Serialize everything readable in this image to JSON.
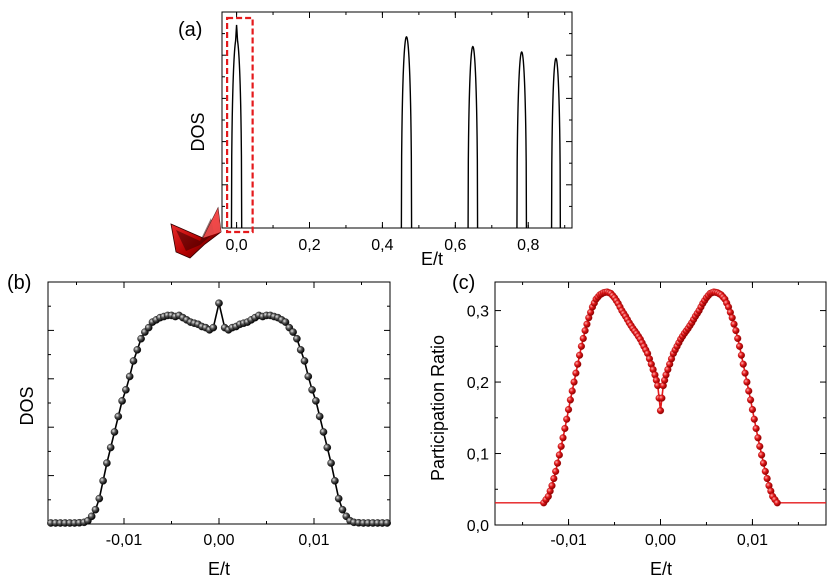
{
  "chart_data": [
    {
      "id": "a",
      "type": "line",
      "panel_label": "(a)",
      "xlabel": "E/t",
      "ylabel": "DOS",
      "xlim": [
        -0.04,
        0.92
      ],
      "ylim": [
        0,
        1.0
      ],
      "xticks": [
        0.0,
        0.2,
        0.4,
        0.6,
        0.8
      ],
      "xtick_labels": [
        "0,0",
        "0,2",
        "0,4",
        "0,6",
        "0,8"
      ],
      "yticks_labels_shown": false,
      "line_color": "#000000",
      "series": [
        {
          "name": "DOS",
          "peaks": [
            {
              "center": 0.0,
              "halfwidth": 0.014,
              "height": 0.88
            },
            {
              "center": 0.466,
              "halfwidth": 0.014,
              "height": 0.885
            },
            {
              "center": 0.648,
              "halfwidth": 0.013,
              "height": 0.84
            },
            {
              "center": 0.782,
              "halfwidth": 0.013,
              "height": 0.815
            },
            {
              "center": 0.876,
              "halfwidth": 0.012,
              "height": 0.785
            }
          ]
        }
      ],
      "highlight_box": {
        "x": [
          -0.026,
          0.044
        ],
        "color": "#e41a1c",
        "style": "dashed"
      },
      "annotation": "red-arrow-pointing-to-highlight"
    },
    {
      "id": "b",
      "type": "line",
      "panel_label": "(b)",
      "xlabel": "E/t",
      "ylabel": "DOS",
      "xlim": [
        -0.018,
        0.018
      ],
      "ylim": [
        0,
        1.0
      ],
      "xticks": [
        -0.01,
        0.0,
        0.01
      ],
      "xtick_labels": [
        "-0,01",
        "0,00",
        "0,01"
      ],
      "yticks_labels_shown": false,
      "marker": "sphere",
      "color": "#000000",
      "x": [
        -0.0177,
        -0.0172,
        -0.0167,
        -0.0162,
        -0.0157,
        -0.0152,
        -0.0147,
        -0.0142,
        -0.0138,
        -0.0134,
        -0.013,
        -0.0126,
        -0.0122,
        -0.0118,
        -0.0114,
        -0.011,
        -0.0106,
        -0.0102,
        -0.0098,
        -0.0094,
        -0.009,
        -0.0086,
        -0.0082,
        -0.0078,
        -0.0074,
        -0.007,
        -0.0066,
        -0.0062,
        -0.0058,
        -0.0054,
        -0.005,
        -0.0046,
        -0.0042,
        -0.0038,
        -0.0034,
        -0.003,
        -0.0026,
        -0.0022,
        -0.0018,
        -0.0014,
        -0.001,
        -0.0006,
        0.0,
        0.0006,
        0.001,
        0.0014,
        0.0018,
        0.0022,
        0.0026,
        0.003,
        0.0034,
        0.0038,
        0.0042,
        0.0046,
        0.005,
        0.0054,
        0.0058,
        0.0062,
        0.0066,
        0.007,
        0.0074,
        0.0078,
        0.0082,
        0.0086,
        0.009,
        0.0094,
        0.0098,
        0.0102,
        0.0106,
        0.011,
        0.0114,
        0.0118,
        0.0122,
        0.0126,
        0.013,
        0.0134,
        0.0138,
        0.0142,
        0.0147,
        0.0152,
        0.0157,
        0.0162,
        0.0167,
        0.0172,
        0.0177
      ],
      "y": [
        0.0,
        0.0,
        0.0,
        0.0,
        0.0,
        0.0,
        0.001,
        0.003,
        0.01,
        0.03,
        0.06,
        0.11,
        0.19,
        0.27,
        0.34,
        0.41,
        0.48,
        0.55,
        0.6,
        0.66,
        0.73,
        0.78,
        0.83,
        0.86,
        0.88,
        0.905,
        0.915,
        0.925,
        0.93,
        0.935,
        0.935,
        0.93,
        0.935,
        0.925,
        0.915,
        0.905,
        0.9,
        0.895,
        0.885,
        0.88,
        0.87,
        0.88,
        0.99,
        0.88,
        0.87,
        0.88,
        0.885,
        0.895,
        0.9,
        0.905,
        0.915,
        0.925,
        0.935,
        0.93,
        0.935,
        0.935,
        0.93,
        0.925,
        0.915,
        0.905,
        0.88,
        0.86,
        0.83,
        0.78,
        0.73,
        0.66,
        0.6,
        0.55,
        0.48,
        0.41,
        0.34,
        0.27,
        0.19,
        0.11,
        0.06,
        0.03,
        0.01,
        0.003,
        0.001,
        0.0,
        0.0,
        0.0,
        0.0,
        0.0,
        0.0
      ]
    },
    {
      "id": "c",
      "type": "line",
      "panel_label": "(c)",
      "xlabel": "E/t",
      "ylabel": "Participation Ratio",
      "xlim": [
        -0.018,
        0.018
      ],
      "ylim": [
        0.0,
        0.34
      ],
      "xticks": [
        -0.01,
        0.0,
        0.01
      ],
      "xtick_labels": [
        "-0,01",
        "0,00",
        "0,01"
      ],
      "yticks": [
        0.0,
        0.1,
        0.2,
        0.3
      ],
      "ytick_labels": [
        "0,0",
        "0,1",
        "0,2",
        "0,3"
      ],
      "marker": "sphere",
      "color": "#e41a1c",
      "flat_level": 0.031,
      "x": [
        -0.0127,
        -0.0122,
        -0.0118,
        -0.0114,
        -0.011,
        -0.0106,
        -0.0102,
        -0.0098,
        -0.0094,
        -0.009,
        -0.0086,
        -0.0082,
        -0.0078,
        -0.0074,
        -0.007,
        -0.0066,
        -0.0062,
        -0.0058,
        -0.0054,
        -0.005,
        -0.0046,
        -0.0042,
        -0.0038,
        -0.0034,
        -0.003,
        -0.0026,
        -0.0022,
        -0.0018,
        -0.0014,
        -0.001,
        -0.0006,
        -0.0003,
        0.0,
        0.0003,
        0.0006,
        0.001,
        0.0014,
        0.0018,
        0.0022,
        0.0026,
        0.003,
        0.0034,
        0.0038,
        0.0042,
        0.0046,
        0.005,
        0.0054,
        0.0058,
        0.0062,
        0.0066,
        0.007,
        0.0074,
        0.0078,
        0.0082,
        0.0086,
        0.009,
        0.0094,
        0.0098,
        0.0102,
        0.0106,
        0.011,
        0.0114,
        0.0118,
        0.0122,
        0.0127
      ],
      "y": [
        0.031,
        0.04,
        0.055,
        0.075,
        0.098,
        0.122,
        0.148,
        0.175,
        0.2,
        0.225,
        0.25,
        0.272,
        0.29,
        0.305,
        0.316,
        0.322,
        0.325,
        0.326,
        0.324,
        0.318,
        0.31,
        0.3,
        0.292,
        0.283,
        0.275,
        0.268,
        0.26,
        0.25,
        0.24,
        0.225,
        0.21,
        0.195,
        0.16,
        0.195,
        0.21,
        0.225,
        0.24,
        0.25,
        0.26,
        0.268,
        0.275,
        0.283,
        0.292,
        0.3,
        0.31,
        0.318,
        0.324,
        0.326,
        0.325,
        0.322,
        0.316,
        0.305,
        0.29,
        0.272,
        0.25,
        0.225,
        0.2,
        0.175,
        0.148,
        0.122,
        0.098,
        0.075,
        0.055,
        0.04,
        0.031
      ]
    }
  ]
}
